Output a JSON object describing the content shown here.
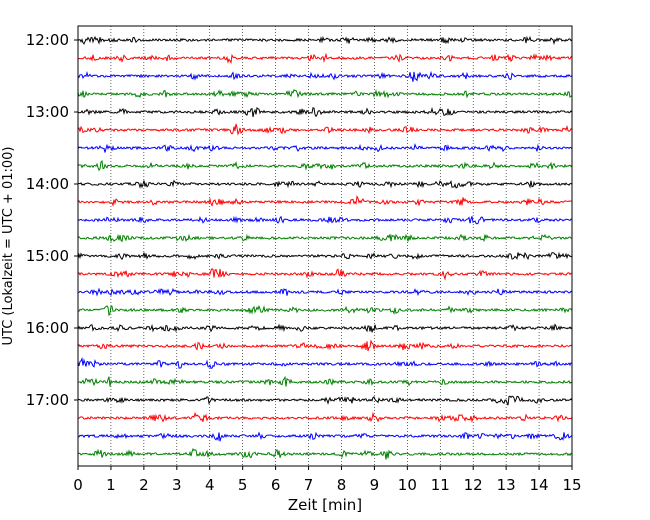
{
  "chart_data": {
    "type": "line",
    "title": "",
    "xlabel": "Zeit  [min]",
    "ylabel": "UTC (Lokalzeit = UTC + 01:00)",
    "xlim": [
      0,
      15
    ],
    "x_ticks": [
      "0",
      "1",
      "2",
      "3",
      "4",
      "5",
      "6",
      "7",
      "8",
      "9",
      "10",
      "11",
      "12",
      "13",
      "14",
      "15"
    ],
    "y_ticks": [
      "12:00",
      "13:00",
      "14:00",
      "15:00",
      "16:00",
      "17:00"
    ],
    "grid": {
      "vertical": true,
      "style": "dotted"
    },
    "trace_interval_minutes": 15,
    "traces_start": "12:00",
    "trace_count": 24,
    "series_colors": [
      "#000000",
      "#ff0000",
      "#0000ff",
      "#008000"
    ]
  }
}
